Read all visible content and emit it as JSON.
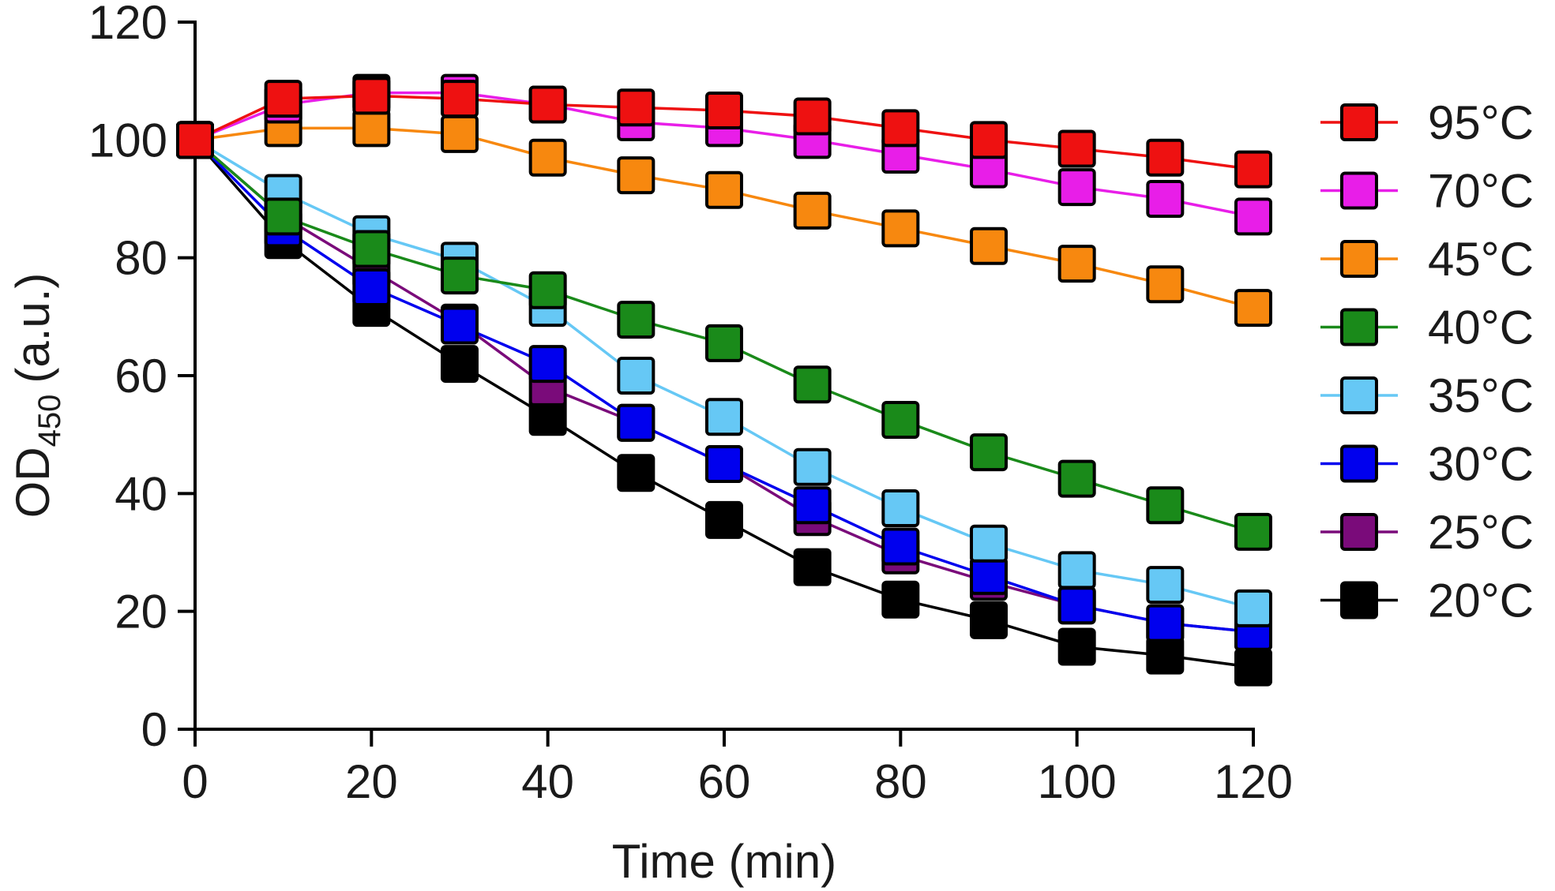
{
  "chart_data": {
    "type": "line",
    "title": "",
    "xlabel": "Time (min)",
    "ylabel_main": "OD",
    "ylabel_sub": "450",
    "ylabel_units": "(a.u.)",
    "x": [
      0,
      10,
      20,
      30,
      40,
      50,
      60,
      70,
      80,
      90,
      100,
      110,
      120
    ],
    "xlim": [
      0,
      120
    ],
    "ylim": [
      0,
      120
    ],
    "xticks": [
      0,
      20,
      40,
      60,
      80,
      100,
      120
    ],
    "yticks": [
      0,
      20,
      40,
      60,
      80,
      100,
      120
    ],
    "grid": false,
    "legend_position": "right",
    "series": [
      {
        "name": "20°C",
        "color": "#000000",
        "values": [
          100,
          83,
          71.5,
          62,
          53,
          43.5,
          35.5,
          27.5,
          22,
          18.5,
          14,
          12.5,
          10.5
        ]
      },
      {
        "name": "25°C",
        "color": "#7a0b7a",
        "values": [
          100,
          87,
          78,
          69,
          58,
          52,
          45,
          36,
          29.5,
          25,
          21,
          18,
          16.5
        ]
      },
      {
        "name": "30°C",
        "color": "#0000ee",
        "values": [
          100,
          85,
          75,
          68.5,
          62,
          52,
          45,
          38,
          31,
          26,
          21,
          18,
          16.5
        ]
      },
      {
        "name": "35°C",
        "color": "#66c8f5",
        "values": [
          100,
          91,
          84,
          79.5,
          71.5,
          60,
          53,
          44.5,
          37.5,
          31.5,
          27,
          24.5,
          20.5
        ]
      },
      {
        "name": "40°C",
        "color": "#1a8a1a",
        "values": [
          100,
          87,
          81.5,
          77,
          74.5,
          69.5,
          65.5,
          58.5,
          52.5,
          47,
          42.5,
          38,
          33.5
        ]
      },
      {
        "name": "45°C",
        "color": "#f7880f",
        "values": [
          100,
          102,
          102,
          101,
          97,
          94,
          91.5,
          88,
          85,
          82,
          79,
          75.5,
          71.5
        ]
      },
      {
        "name": "70°C",
        "color": "#e81ee8",
        "values": [
          100,
          106,
          108,
          108,
          106,
          103,
          102,
          100,
          97.5,
          95,
          92,
          90,
          87
        ]
      },
      {
        "name": "95°C",
        "color": "#ee1111",
        "values": [
          100,
          107,
          107.5,
          107,
          106,
          105.5,
          105,
          104,
          102,
          100,
          98.5,
          97,
          95
        ]
      }
    ],
    "legend_order": [
      "95°C",
      "70°C",
      "45°C",
      "40°C",
      "35°C",
      "30°C",
      "25°C",
      "20°C"
    ]
  }
}
